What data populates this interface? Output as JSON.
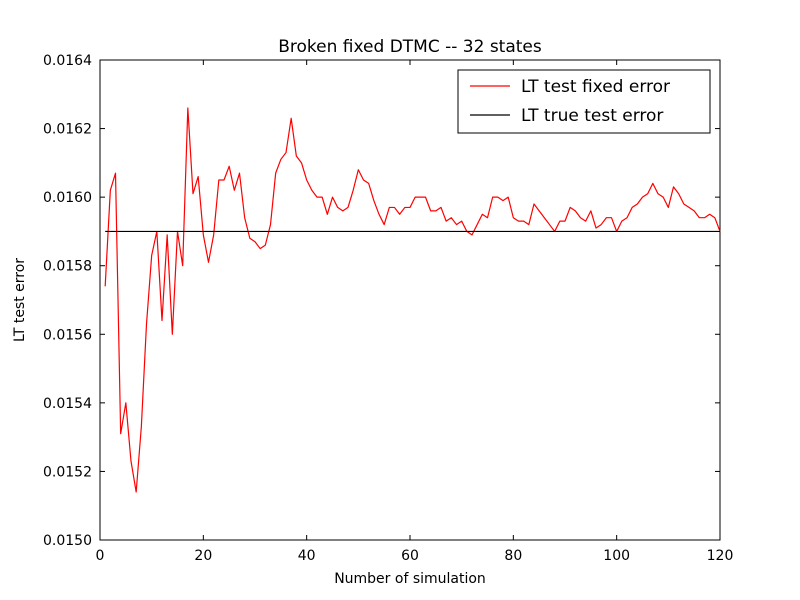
{
  "chart_data": {
    "type": "line",
    "title": "Broken fixed DTMC -- 32 states",
    "xlabel": "Number of simulation",
    "ylabel": "LT test error",
    "xlim": [
      0,
      120
    ],
    "ylim": [
      0.015,
      0.0164
    ],
    "xticks": [
      0,
      20,
      40,
      60,
      80,
      100,
      120
    ],
    "yticks": [
      0.015,
      0.0152,
      0.0154,
      0.0156,
      0.0158,
      0.016,
      0.0162,
      0.0164
    ],
    "x_tick_labels": [
      "0",
      "20",
      "40",
      "60",
      "80",
      "100",
      "120"
    ],
    "y_tick_labels": [
      "0.0150",
      "0.0152",
      "0.0154",
      "0.0156",
      "0.0158",
      "0.0160",
      "0.0162",
      "0.0164"
    ],
    "grid": false,
    "legend_position": "top-right",
    "series": [
      {
        "name": "LT test fixed error",
        "color": "#ff0000",
        "x": [
          1,
          2,
          3,
          4,
          5,
          6,
          7,
          8,
          9,
          10,
          11,
          12,
          13,
          14,
          15,
          16,
          17,
          18,
          19,
          20,
          21,
          22,
          23,
          24,
          25,
          26,
          27,
          28,
          29,
          30,
          31,
          32,
          33,
          34,
          35,
          36,
          37,
          38,
          39,
          40,
          41,
          42,
          43,
          44,
          45,
          46,
          47,
          48,
          49,
          50,
          51,
          52,
          53,
          54,
          55,
          56,
          57,
          58,
          59,
          60,
          61,
          62,
          63,
          64,
          65,
          66,
          67,
          68,
          69,
          70,
          71,
          72,
          73,
          74,
          75,
          76,
          77,
          78,
          79,
          80,
          81,
          82,
          83,
          84,
          85,
          86,
          87,
          88,
          89,
          90,
          91,
          92,
          93,
          94,
          95,
          96,
          97,
          98,
          99,
          100,
          101,
          102,
          103,
          104,
          105,
          106,
          107,
          108,
          109,
          110,
          111,
          112,
          113,
          114,
          115,
          116,
          117,
          118,
          119,
          120
        ],
        "values": [
          0.01574,
          0.01602,
          0.01607,
          0.01531,
          0.0154,
          0.01523,
          0.01514,
          0.01533,
          0.01563,
          0.01583,
          0.0159,
          0.01564,
          0.01589,
          0.0156,
          0.0159,
          0.0158,
          0.01626,
          0.01601,
          0.01606,
          0.01589,
          0.01581,
          0.01589,
          0.01605,
          0.01605,
          0.01609,
          0.01602,
          0.01607,
          0.01594,
          0.01588,
          0.01587,
          0.01585,
          0.01586,
          0.01592,
          0.01607,
          0.01611,
          0.01613,
          0.01623,
          0.01612,
          0.0161,
          0.01605,
          0.01602,
          0.016,
          0.016,
          0.01595,
          0.016,
          0.01597,
          0.01596,
          0.01597,
          0.01602,
          0.01608,
          0.01605,
          0.01604,
          0.01599,
          0.01595,
          0.01592,
          0.01597,
          0.01597,
          0.01595,
          0.01597,
          0.01597,
          0.016,
          0.016,
          0.016,
          0.01596,
          0.01596,
          0.01597,
          0.01593,
          0.01594,
          0.01592,
          0.01593,
          0.0159,
          0.01589,
          0.01592,
          0.01595,
          0.01594,
          0.016,
          0.016,
          0.01599,
          0.016,
          0.01594,
          0.01593,
          0.01593,
          0.01592,
          0.01598,
          0.01596,
          0.01594,
          0.01592,
          0.0159,
          0.01593,
          0.01593,
          0.01597,
          0.01596,
          0.01594,
          0.01593,
          0.01596,
          0.01591,
          0.01592,
          0.01594,
          0.01594,
          0.0159,
          0.01593,
          0.01594,
          0.01597,
          0.01598,
          0.016,
          0.01601,
          0.01604,
          0.01601,
          0.016,
          0.01597,
          0.01603,
          0.01601,
          0.01598,
          0.01597,
          0.01596,
          0.01594,
          0.01594,
          0.01595,
          0.01594,
          0.0159
        ]
      },
      {
        "name": "LT true test error",
        "color": "#000000",
        "x": [
          1,
          120
        ],
        "values": [
          0.0159,
          0.0159
        ]
      }
    ]
  }
}
